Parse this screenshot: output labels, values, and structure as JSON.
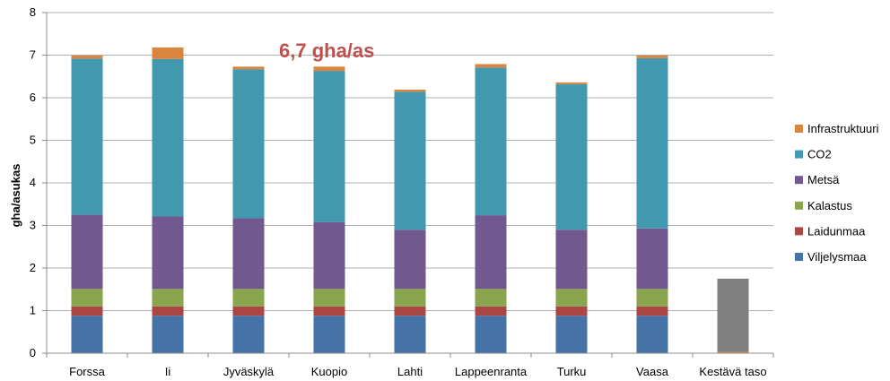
{
  "chart_data": {
    "type": "bar",
    "stacked": true,
    "categories": [
      "Forssa",
      "Ii",
      "Jyväskylä",
      "Kuopio",
      "Lahti",
      "Lappeenranta",
      "Turku",
      "Vaasa",
      "Kestävä taso"
    ],
    "ylabel": "gha/asukas",
    "ylim": [
      0,
      8
    ],
    "yticks": [
      0,
      1,
      2,
      3,
      4,
      5,
      6,
      7,
      8
    ],
    "grid": true,
    "legend_position": "right",
    "annotation": {
      "text": "6,7 gha/as",
      "color": "#c0504d"
    },
    "series": [
      {
        "name": "Viljelysmaa",
        "color": "#4572a7",
        "values": [
          0.88,
          0.88,
          0.88,
          0.88,
          0.88,
          0.88,
          0.88,
          0.88,
          0
        ]
      },
      {
        "name": "Laidunmaa",
        "color": "#aa4643",
        "values": [
          0.22,
          0.22,
          0.22,
          0.22,
          0.22,
          0.22,
          0.22,
          0.22,
          0
        ]
      },
      {
        "name": "Kalastus",
        "color": "#89a54e",
        "values": [
          0.41,
          0.41,
          0.41,
          0.41,
          0.41,
          0.41,
          0.41,
          0.41,
          0
        ]
      },
      {
        "name": "Metsä",
        "color": "#71588f",
        "values": [
          1.74,
          1.7,
          1.66,
          1.57,
          1.39,
          1.73,
          1.39,
          1.42,
          0
        ]
      },
      {
        "name": "CO2",
        "color": "#4198af",
        "values": [
          3.67,
          3.7,
          3.5,
          3.55,
          3.24,
          3.47,
          3.42,
          4.0,
          0
        ]
      },
      {
        "name": "Infrastruktuuri",
        "color": "#db843d",
        "values": [
          0.07,
          0.27,
          0.06,
          0.1,
          0.05,
          0.08,
          0.04,
          0.06,
          0.03
        ]
      },
      {
        "name": "",
        "color": "#808080",
        "values": [
          0,
          0,
          0,
          0,
          0,
          0,
          0,
          0,
          1.72
        ]
      }
    ]
  }
}
